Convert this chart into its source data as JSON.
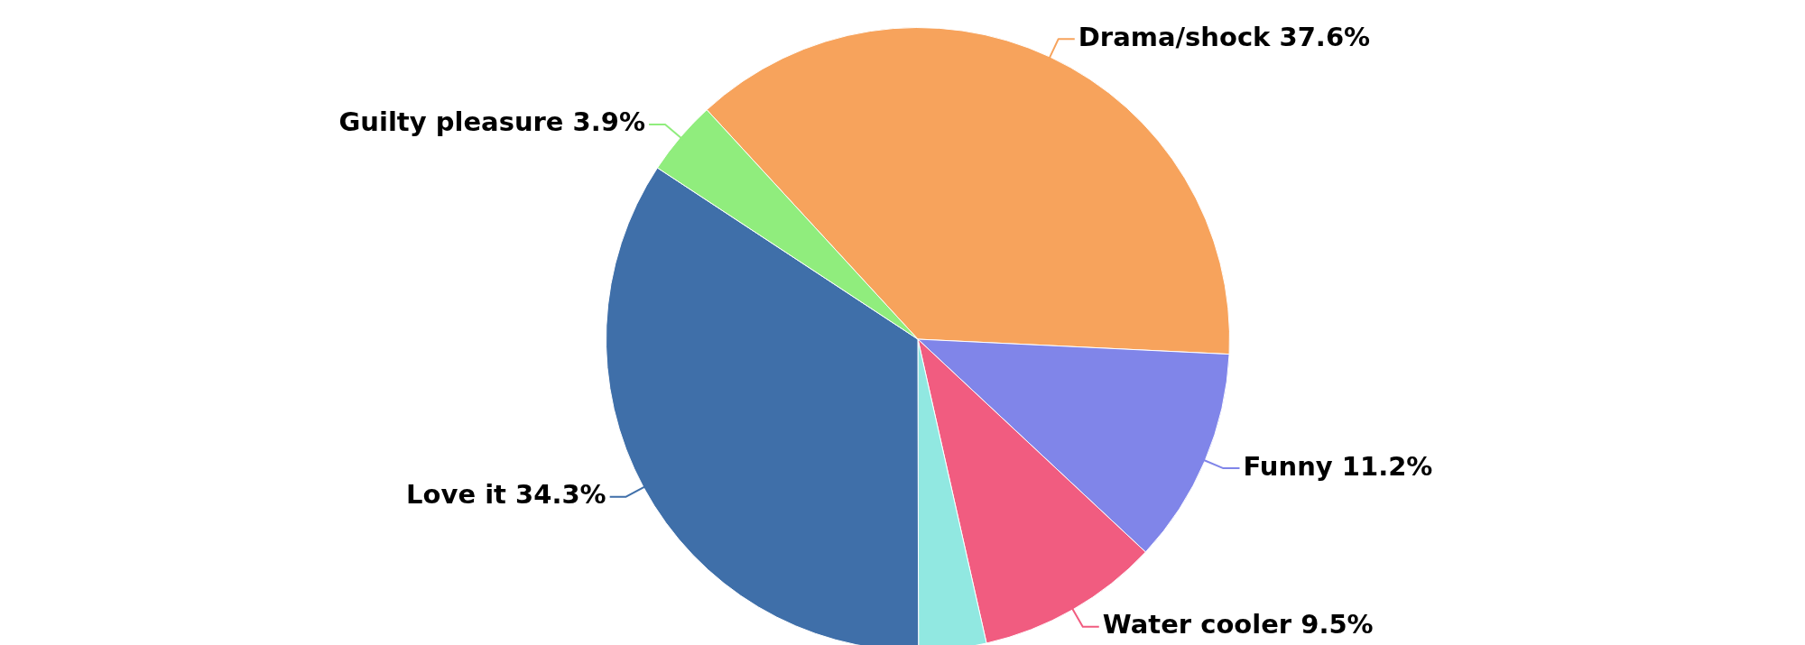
{
  "chart_data": {
    "type": "pie",
    "categories": [
      "Drama/shock",
      "Funny",
      "Water cooler",
      null,
      "Love it",
      "Guilty pleasure"
    ],
    "values": [
      37.6,
      11.2,
      9.5,
      3.5,
      34.3,
      3.9
    ],
    "value_labels": [
      "37.6%",
      "11.2%",
      "9.5%",
      null,
      "34.3%",
      "3.9%"
    ],
    "colors": [
      "#f7a35c",
      "#8085e9",
      "#f15c80",
      "#91e8e1",
      "#3f6fa9",
      "#90ed7d"
    ],
    "legend": false
  }
}
